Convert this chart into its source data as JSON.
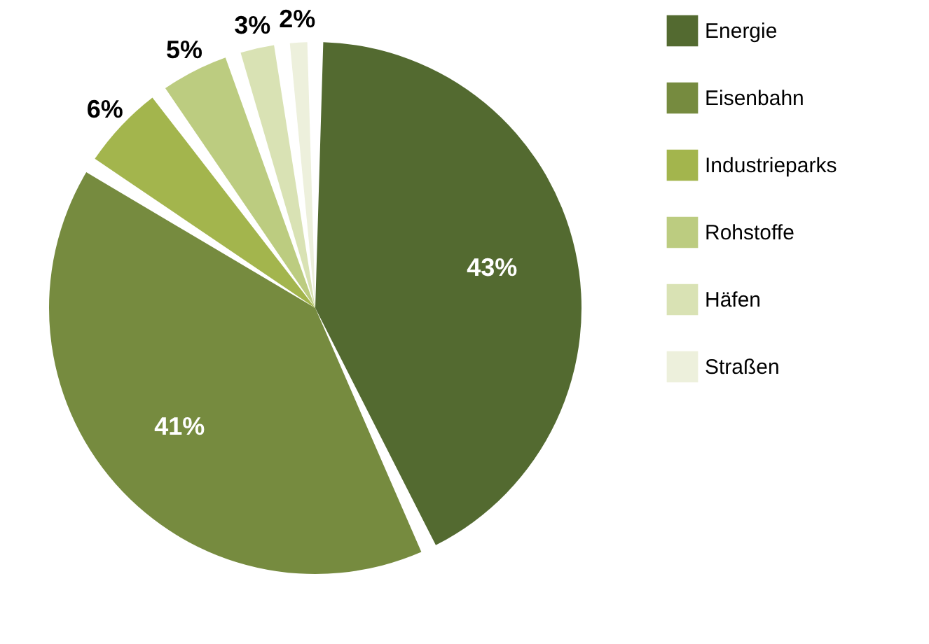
{
  "chart_data": {
    "type": "pie",
    "categories": [
      "Energie",
      "Eisenbahn",
      "Industrieparks",
      "Rohstoffe",
      "Häfen",
      "Straßen"
    ],
    "values": [
      43,
      41,
      6,
      5,
      3,
      2
    ],
    "colors": [
      "#536a30",
      "#768b3f",
      "#a3b54d",
      "#bccc80",
      "#d9e2b4",
      "#edf0dc"
    ],
    "value_labels": [
      "43%",
      "41%",
      "6%",
      "5%",
      "3%",
      "2%"
    ],
    "legend": "right"
  }
}
